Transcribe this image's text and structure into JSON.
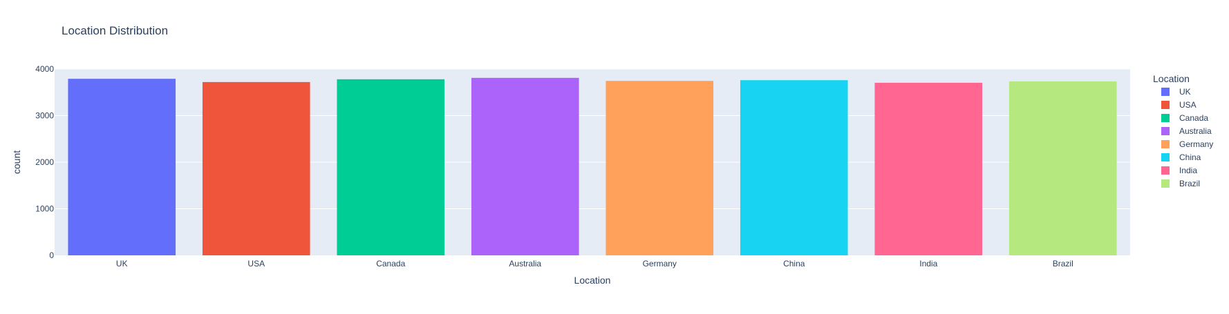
{
  "chart_data": {
    "type": "bar",
    "title": "Location Distribution",
    "xlabel": "Location",
    "ylabel": "count",
    "categories": [
      "UK",
      "USA",
      "Canada",
      "Australia",
      "Germany",
      "China",
      "India",
      "Brazil"
    ],
    "values": [
      3790,
      3720,
      3780,
      3810,
      3745,
      3760,
      3705,
      3735
    ],
    "ylim": [
      0,
      4000
    ],
    "yticks": [
      0,
      1000,
      2000,
      3000,
      4000
    ],
    "grid": true,
    "legend": {
      "title": "Location",
      "position": "right",
      "entries": [
        "UK",
        "USA",
        "Canada",
        "Australia",
        "Germany",
        "China",
        "India",
        "Brazil"
      ]
    },
    "colors": [
      "#636efa",
      "#ef553b",
      "#00cc96",
      "#ab63fa",
      "#ffa15a",
      "#19d3f3",
      "#ff6692",
      "#b6e880"
    ],
    "plot_background": "#e5ecf6"
  }
}
